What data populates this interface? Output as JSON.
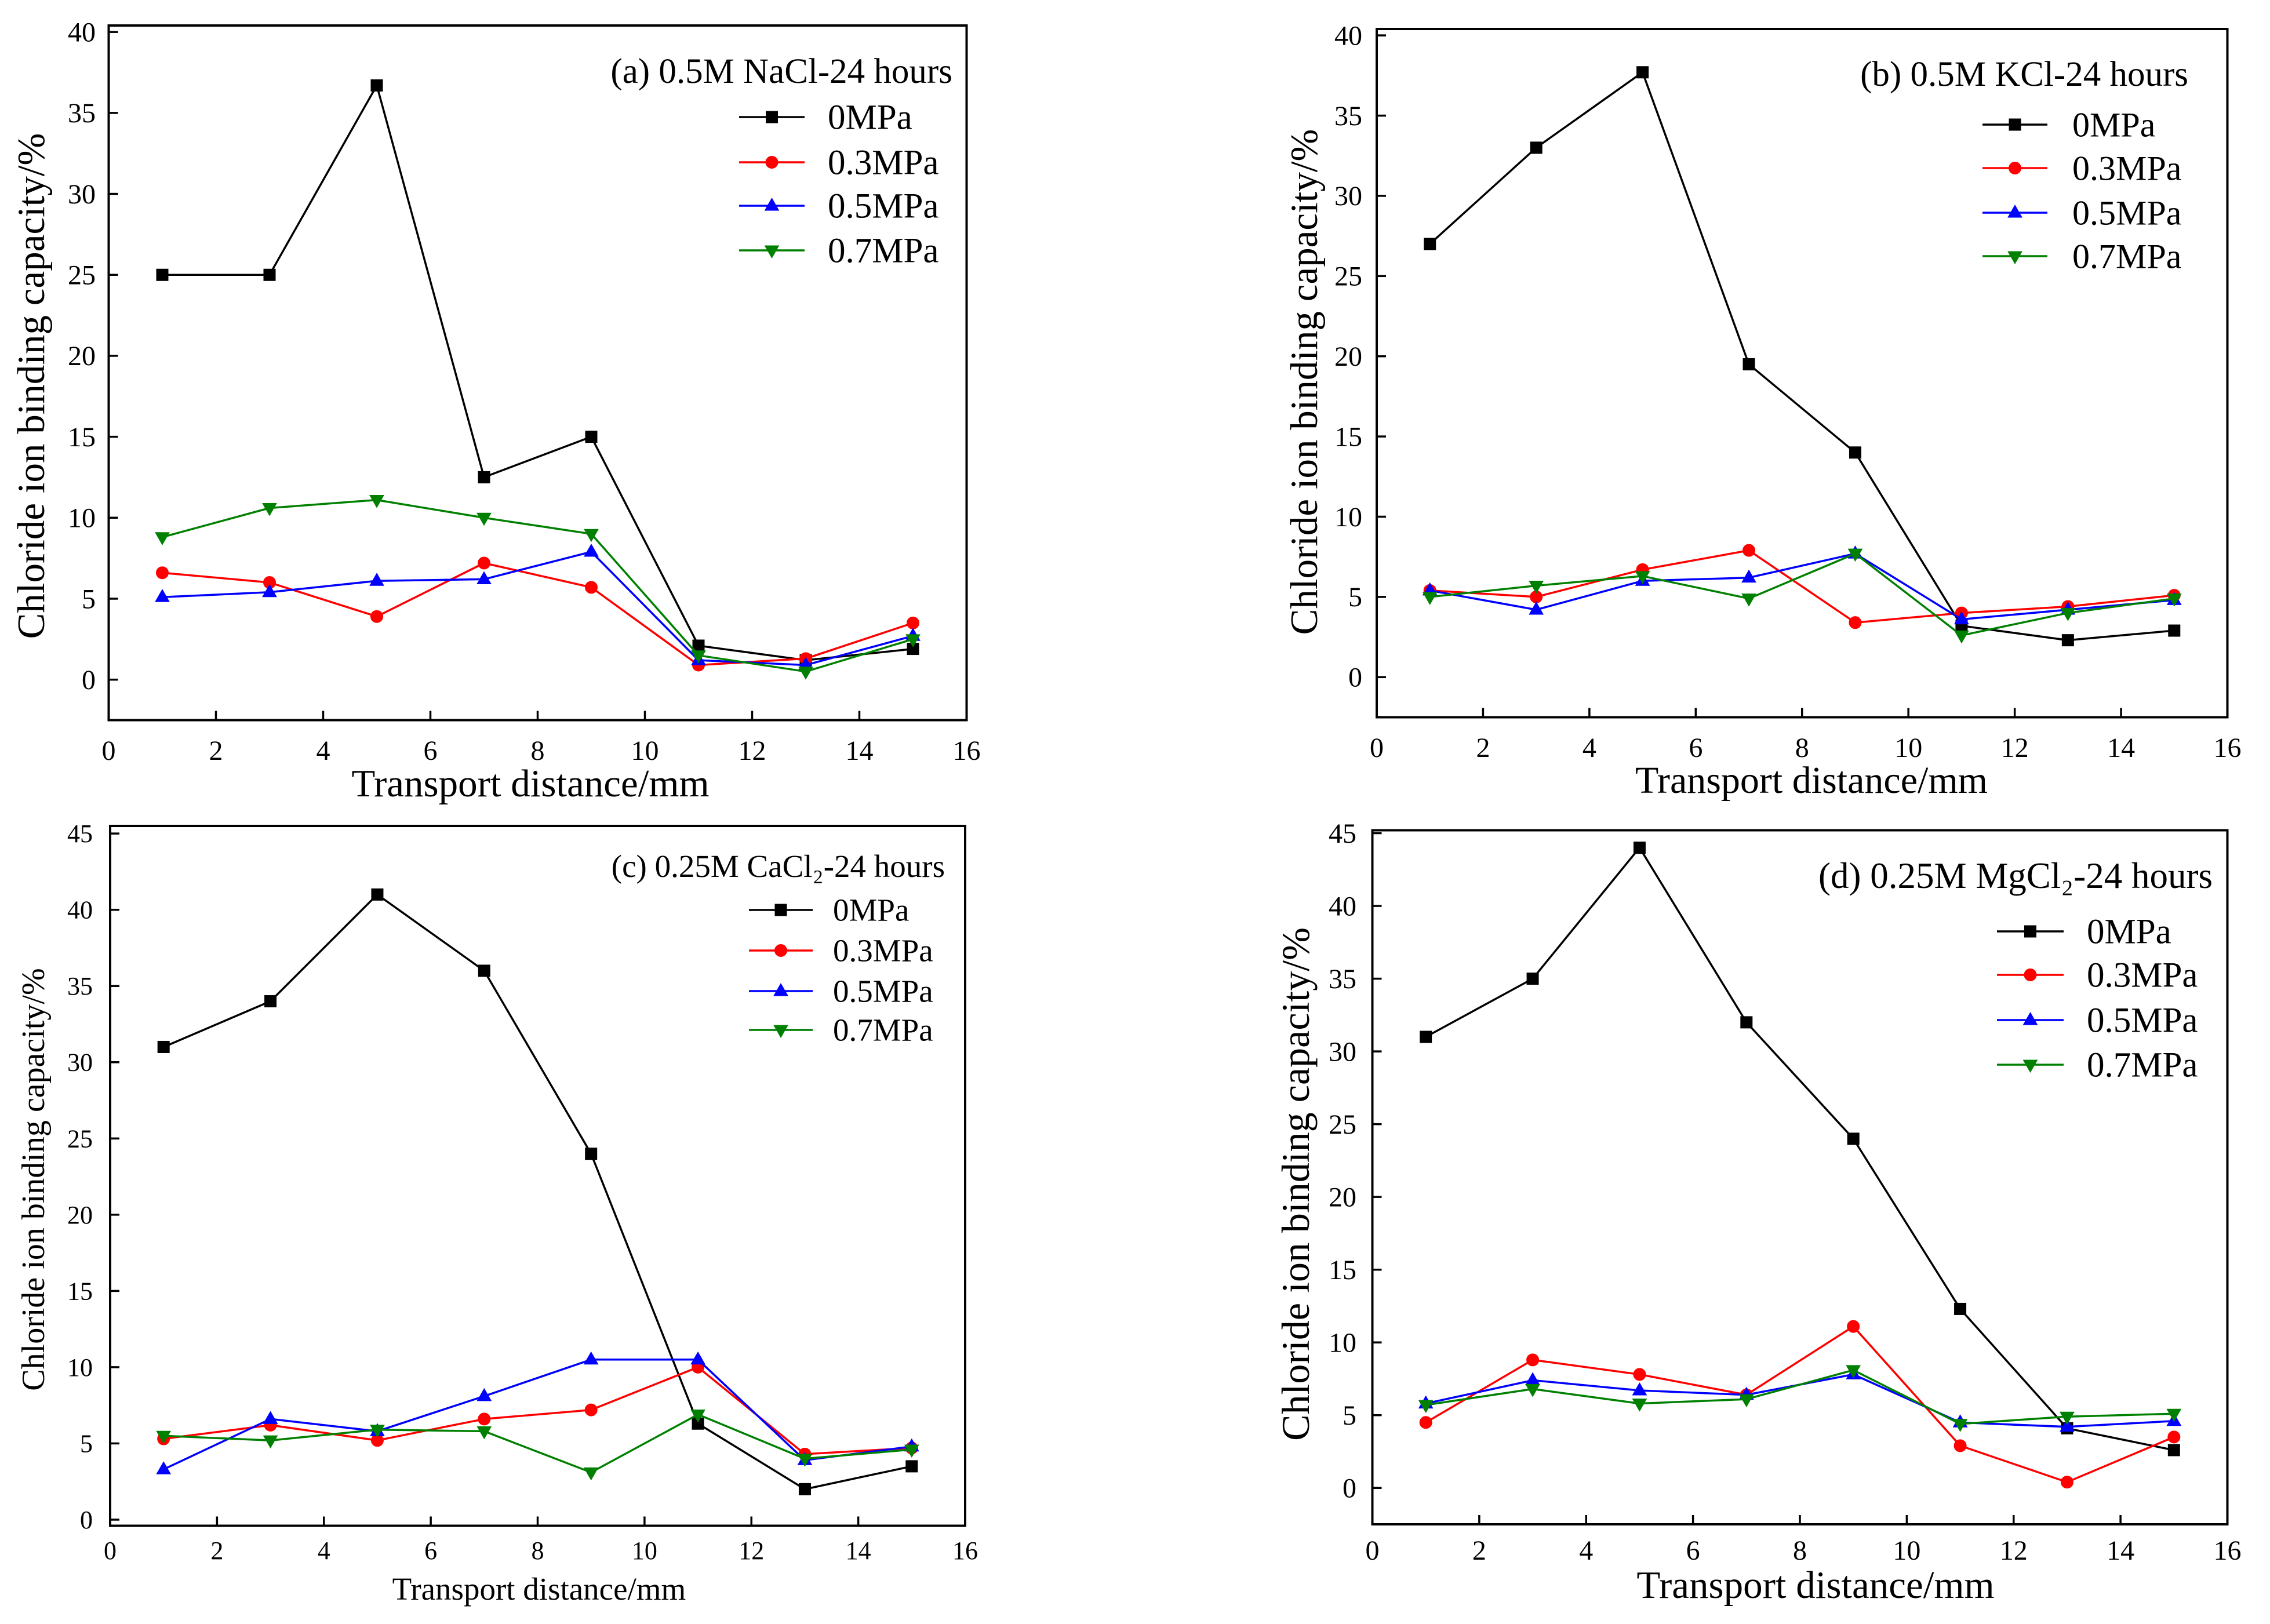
{
  "chart_data": [
    {
      "type": "line",
      "title": "(a) 0.5M NaCl-24 hours",
      "xlabel": "Transport distance/mm",
      "ylabel": "Chloride ion binding capacity/%",
      "x": [
        1,
        3,
        5,
        7,
        9,
        11,
        13,
        15
      ],
      "xlim": [
        0,
        16
      ],
      "ylim": [
        -2.5,
        40.4
      ],
      "xticks": [
        0,
        2,
        4,
        6,
        8,
        10,
        12,
        14,
        16
      ],
      "yticks": [
        0,
        5,
        10,
        15,
        20,
        25,
        30,
        35,
        40
      ],
      "grid": false,
      "legend_position": "top-right",
      "series": [
        {
          "name": "0MPa",
          "color": "#000000",
          "marker": "square",
          "values": [
            25.0,
            25.0,
            36.7,
            12.5,
            15.0,
            2.1,
            1.2,
            1.9
          ]
        },
        {
          "name": "0.3MPa",
          "color": "#FF0000",
          "marker": "circle",
          "values": [
            6.6,
            6.0,
            3.9,
            7.2,
            5.7,
            0.9,
            1.3,
            3.5
          ]
        },
        {
          "name": "0.5MPa",
          "color": "#0000FF",
          "marker": "triangle-up",
          "values": [
            5.1,
            5.4,
            6.1,
            6.2,
            7.9,
            1.2,
            0.9,
            2.7
          ]
        },
        {
          "name": "0.7MPa",
          "color": "#008000",
          "marker": "triangle-down",
          "values": [
            8.8,
            10.6,
            11.1,
            10.0,
            9.0,
            1.5,
            0.5,
            2.5
          ]
        }
      ]
    },
    {
      "type": "line",
      "title": "(b) 0.5M KCl-24 hours",
      "xlabel": "Transport distance/mm",
      "ylabel": "Chloride ion binding capacity/%",
      "x": [
        1,
        3,
        5,
        7,
        9,
        11,
        13,
        15
      ],
      "xlim": [
        0,
        16
      ],
      "ylim": [
        -2.5,
        40.4
      ],
      "xticks": [
        0,
        2,
        4,
        6,
        8,
        10,
        12,
        14,
        16
      ],
      "yticks": [
        0,
        5,
        10,
        15,
        20,
        25,
        30,
        35,
        40
      ],
      "grid": false,
      "legend_position": "top-right",
      "series": [
        {
          "name": "0MPa",
          "color": "#000000",
          "marker": "square",
          "values": [
            27.0,
            33.0,
            37.7,
            19.5,
            14.0,
            3.2,
            2.3,
            2.9
          ]
        },
        {
          "name": "0.3MPa",
          "color": "#FF0000",
          "marker": "circle",
          "values": [
            5.4,
            5.0,
            6.7,
            7.9,
            3.4,
            4.0,
            4.4,
            5.1
          ]
        },
        {
          "name": "0.5MPa",
          "color": "#0000FF",
          "marker": "triangle-up",
          "values": [
            5.4,
            4.2,
            6.0,
            6.2,
            7.7,
            3.6,
            4.2,
            4.8
          ]
        },
        {
          "name": "0.7MPa",
          "color": "#008000",
          "marker": "triangle-down",
          "values": [
            5.0,
            5.7,
            6.3,
            4.9,
            7.7,
            2.6,
            4.0,
            4.9
          ]
        }
      ]
    },
    {
      "type": "line",
      "title": "(c) 0.25M CaCl₂-24 hours",
      "xlabel": "Transport distance/mm",
      "ylabel": "Chloride ion binding capacity/%",
      "x": [
        1,
        3,
        5,
        7,
        9,
        11,
        13,
        15
      ],
      "xlim": [
        0,
        16
      ],
      "ylim": [
        -0.4,
        45.5
      ],
      "xticks": [
        0,
        2,
        4,
        6,
        8,
        10,
        12,
        14,
        16
      ],
      "yticks": [
        0,
        5,
        10,
        15,
        20,
        25,
        30,
        35,
        40,
        45
      ],
      "grid": false,
      "legend_position": "top-right",
      "series": [
        {
          "name": "0MPa",
          "color": "#000000",
          "marker": "square",
          "values": [
            31.0,
            34.0,
            41.0,
            36.0,
            24.0,
            6.3,
            2.0,
            3.5
          ]
        },
        {
          "name": "0.3MPa",
          "color": "#FF0000",
          "marker": "circle",
          "values": [
            5.3,
            6.2,
            5.2,
            6.6,
            7.2,
            10.0,
            4.3,
            4.7
          ]
        },
        {
          "name": "0.5MPa",
          "color": "#0000FF",
          "marker": "triangle-up",
          "values": [
            3.3,
            6.6,
            5.8,
            8.1,
            10.5,
            10.5,
            3.9,
            4.8
          ]
        },
        {
          "name": "0.7MPa",
          "color": "#008000",
          "marker": "triangle-down",
          "values": [
            5.5,
            5.2,
            5.9,
            5.8,
            3.1,
            6.9,
            4.0,
            4.6
          ]
        }
      ]
    },
    {
      "type": "line",
      "title": "(d) 0.25M MgCl₂-24 hours",
      "xlabel": "Transport distance/mm",
      "ylabel": "Chloride ion binding capacity/%",
      "x": [
        1,
        3,
        5,
        7,
        9,
        11,
        13,
        15
      ],
      "xlim": [
        0,
        16
      ],
      "ylim": [
        -2.5,
        45.2
      ],
      "xticks": [
        0,
        2,
        4,
        6,
        8,
        10,
        12,
        14,
        16
      ],
      "yticks": [
        0,
        5,
        10,
        15,
        20,
        25,
        30,
        35,
        40,
        45
      ],
      "grid": false,
      "legend_position": "top-right",
      "series": [
        {
          "name": "0MPa",
          "color": "#000000",
          "marker": "square",
          "values": [
            31.0,
            35.0,
            44.0,
            32.0,
            24.0,
            12.3,
            4.1,
            2.6
          ]
        },
        {
          "name": "0.3MPa",
          "color": "#FF0000",
          "marker": "circle",
          "values": [
            4.5,
            8.8,
            7.8,
            6.4,
            11.1,
            2.9,
            0.4,
            3.5
          ]
        },
        {
          "name": "0.5MPa",
          "color": "#0000FF",
          "marker": "triangle-up",
          "values": [
            5.8,
            7.4,
            6.7,
            6.4,
            7.8,
            4.5,
            4.2,
            4.6
          ]
        },
        {
          "name": "0.7MPa",
          "color": "#008000",
          "marker": "triangle-down",
          "values": [
            5.7,
            6.8,
            5.8,
            6.1,
            8.1,
            4.4,
            4.9,
            5.1
          ]
        }
      ]
    }
  ]
}
